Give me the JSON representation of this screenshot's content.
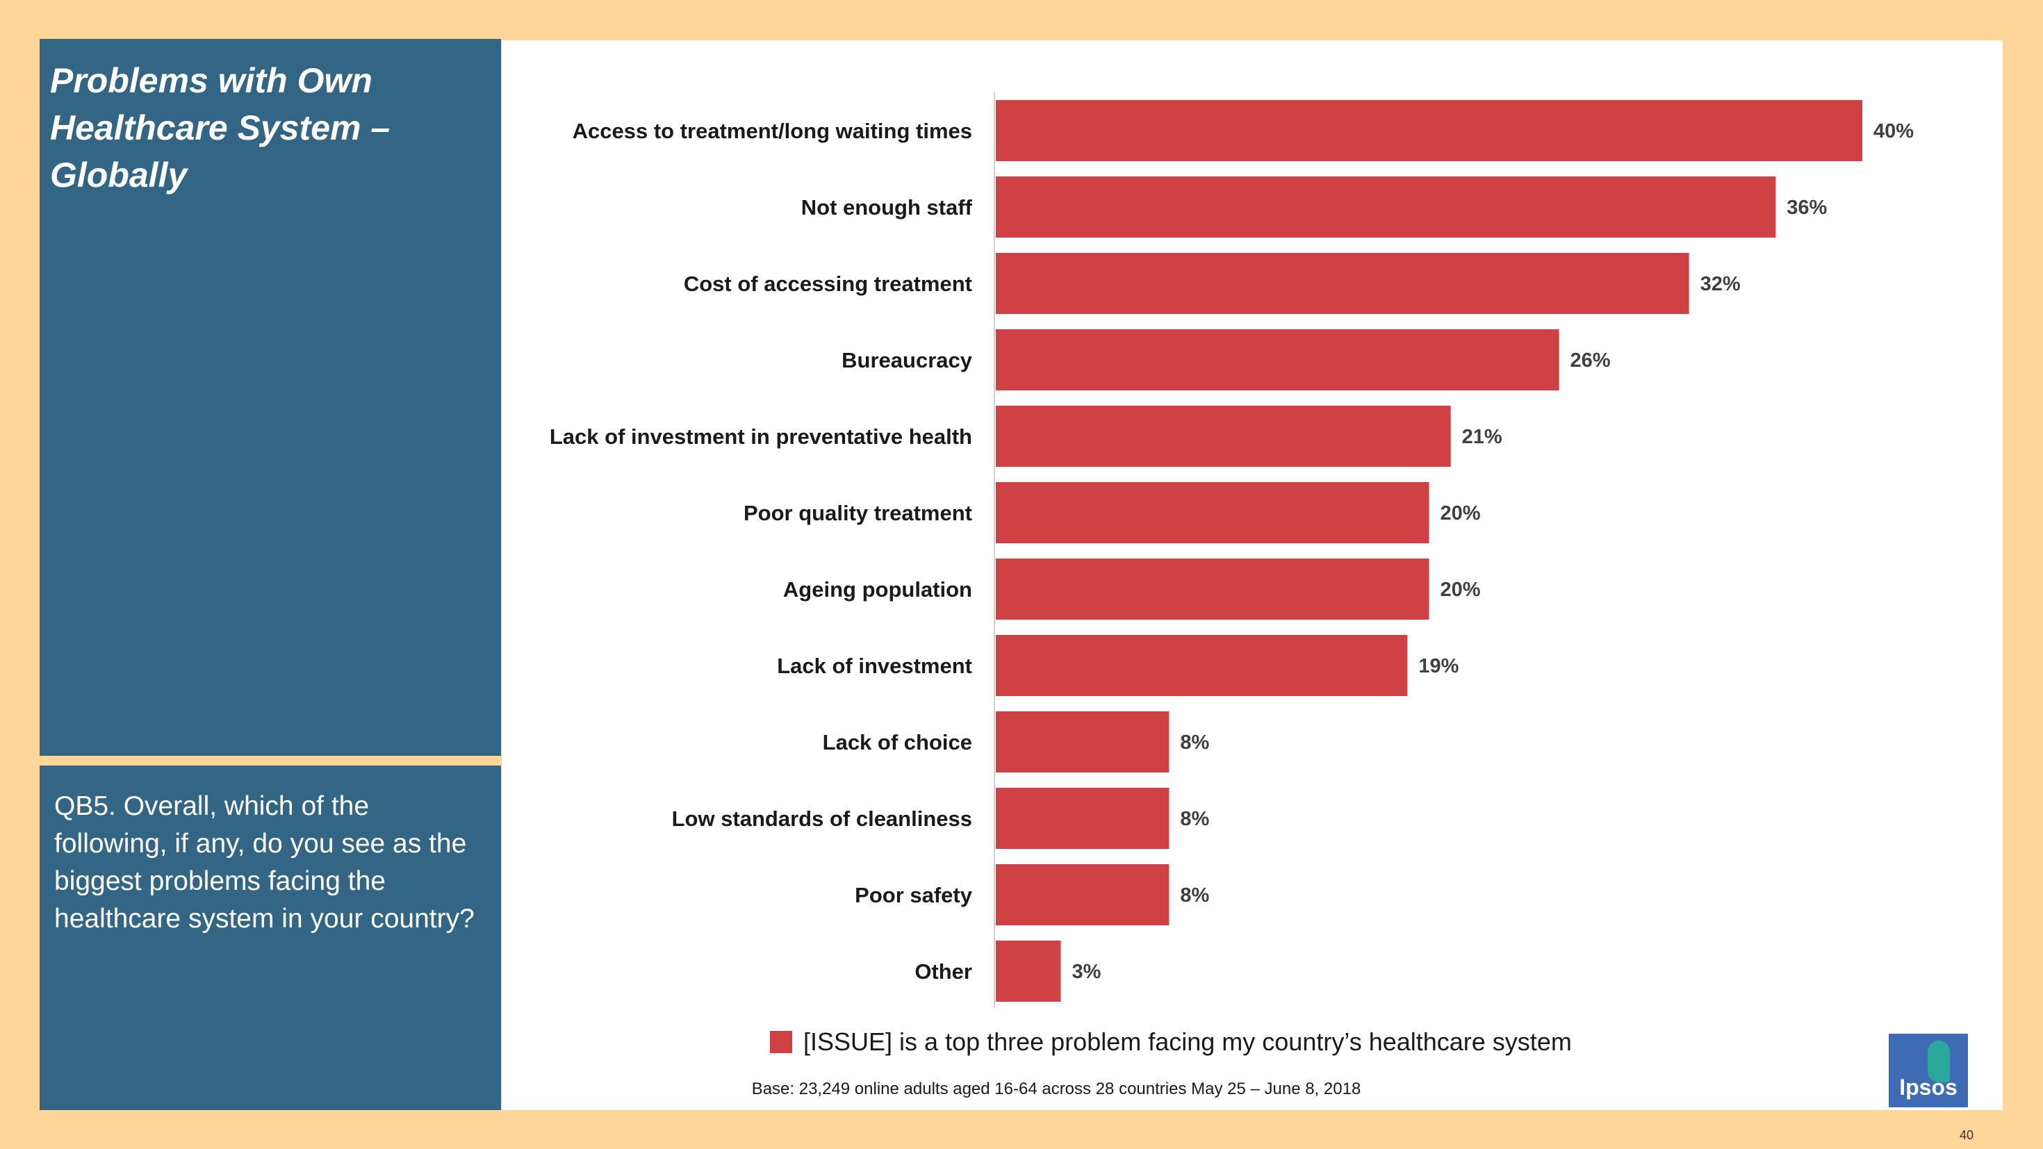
{
  "title_panel": {
    "title": "Problems with Own Healthcare System – Globally"
  },
  "question_panel": {
    "question": "QB5. Overall, which of the following, if any, do you see as the biggest problems facing the healthcare system in your country?"
  },
  "chart_data": {
    "type": "bar",
    "orientation": "horizontal",
    "categories": [
      "Access to treatment/long waiting times",
      "Not enough staff",
      "Cost of accessing treatment",
      "Bureaucracy",
      "Lack of investment in preventative health",
      "Poor quality treatment",
      "Ageing population",
      "Lack of investment",
      "Lack of choice",
      "Low standards of cleanliness",
      "Poor safety",
      "Other"
    ],
    "values": [
      40,
      36,
      32,
      26,
      21,
      20,
      20,
      19,
      8,
      8,
      8,
      3
    ],
    "value_labels": [
      "40%",
      "36%",
      "32%",
      "26%",
      "21%",
      "20%",
      "20%",
      "19%",
      "8%",
      "8%",
      "8%",
      "3%"
    ],
    "series_name": "[ISSUE] is a top three problem facing my country’s healthcare system",
    "xlim": [
      0,
      40
    ],
    "bar_color": "#D04143",
    "grid": false,
    "legend_position": "bottom"
  },
  "legend": {
    "label": "[ISSUE] is a top three problem facing my country’s healthcare system"
  },
  "footer": {
    "base": "Base: 23,249 online adults aged 16-64 across 28 countries May 25 – June 8, 2018",
    "page_number": "40"
  },
  "logo": {
    "text": "Ipsos",
    "icon": "ipsos-logo-icon"
  },
  "colors": {
    "background": "#FFD699",
    "panel": "#336685",
    "bar": "#D04143"
  }
}
